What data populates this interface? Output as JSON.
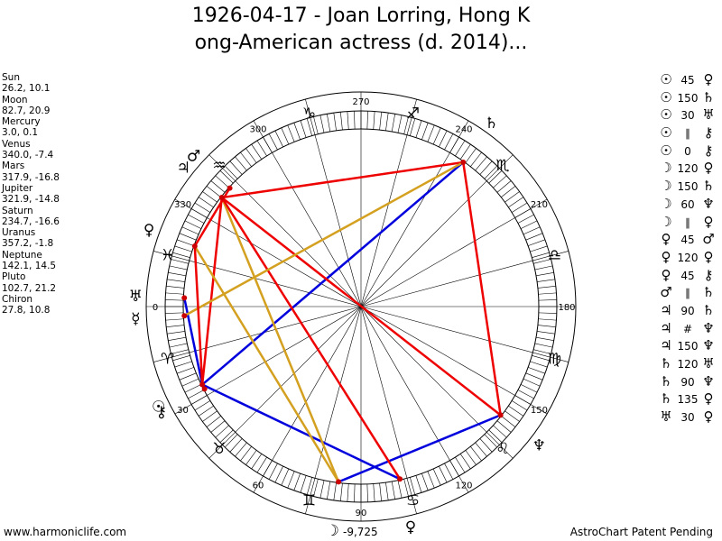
{
  "title": {
    "line1": "1926-04-17 - Joan Lorring, Hong K",
    "line2": "ong-American actress (d. 2014)..."
  },
  "planets": [
    {
      "name": "Sun",
      "coords": "26.2, 10.1",
      "symbol": "☉",
      "longitude": 26.2
    },
    {
      "name": "Moon",
      "coords": "82.7, 20.9",
      "symbol": "☽",
      "longitude": 82.7
    },
    {
      "name": "Mercury",
      "coords": "3.0, 0.1",
      "symbol": "☿",
      "longitude": 3.0
    },
    {
      "name": "Venus",
      "coords": "340.0, -7.4",
      "symbol": "♀",
      "longitude": 340.0
    },
    {
      "name": "Mars",
      "coords": "317.9, -16.8",
      "symbol": "♂",
      "longitude": 317.9
    },
    {
      "name": "Jupiter",
      "coords": "321.9, -14.8",
      "symbol": "♃",
      "longitude": 321.9
    },
    {
      "name": "Saturn",
      "coords": "234.7, -16.6",
      "symbol": "♄",
      "longitude": 234.7
    },
    {
      "name": "Uranus",
      "coords": "357.2, -1.8",
      "symbol": "♅",
      "longitude": 357.2
    },
    {
      "name": "Neptune",
      "coords": "142.1, 14.5",
      "symbol": "♆",
      "longitude": 142.1
    },
    {
      "name": "Pluto",
      "coords": "102.7, 21.2",
      "symbol": "♀",
      "longitude": 102.7
    },
    {
      "name": "Chiron",
      "coords": "27.8, 10.8",
      "symbol": "⚷",
      "longitude": 27.8
    }
  ],
  "aspects": [
    {
      "p1": "☉",
      "type": "45",
      "p2": "♀"
    },
    {
      "p1": "☉",
      "type": "150",
      "p2": "♄"
    },
    {
      "p1": "☉",
      "type": "30",
      "p2": "♅"
    },
    {
      "p1": "☉",
      "type": "∥",
      "p2": "⚷"
    },
    {
      "p1": "☉",
      "type": "0",
      "p2": "⚷"
    },
    {
      "p1": "☽",
      "type": "120",
      "p2": "♀"
    },
    {
      "p1": "☽",
      "type": "150",
      "p2": "♄"
    },
    {
      "p1": "☽",
      "type": "60",
      "p2": "♆"
    },
    {
      "p1": "☽",
      "type": "∥",
      "p2": "♀"
    },
    {
      "p1": "♀",
      "type": "45",
      "p2": "♂"
    },
    {
      "p1": "♀",
      "type": "120",
      "p2": "♀"
    },
    {
      "p1": "♀",
      "type": "45",
      "p2": "⚷"
    },
    {
      "p1": "♂",
      "type": "∥",
      "p2": "♄"
    },
    {
      "p1": "♃",
      "type": "90",
      "p2": "♄"
    },
    {
      "p1": "♃",
      "type": "#",
      "p2": "♆"
    },
    {
      "p1": "♃",
      "type": "150",
      "p2": "♆"
    },
    {
      "p1": "♄",
      "type": "120",
      "p2": "♅"
    },
    {
      "p1": "♄",
      "type": "90",
      "p2": "♆"
    },
    {
      "p1": "♄",
      "type": "135",
      "p2": "♀"
    },
    {
      "p1": "♅",
      "type": "30",
      "p2": "♀"
    }
  ],
  "zodiac_signs": [
    {
      "symbol": "♈",
      "cusp": 0
    },
    {
      "symbol": "♉",
      "cusp": 30
    },
    {
      "symbol": "♊",
      "cusp": 60
    },
    {
      "symbol": "♋",
      "cusp": 90
    },
    {
      "symbol": "♌",
      "cusp": 120
    },
    {
      "symbol": "♍",
      "cusp": 150
    },
    {
      "symbol": "♎",
      "cusp": 180
    },
    {
      "symbol": "♏",
      "cusp": 210
    },
    {
      "symbol": "♐",
      "cusp": 240
    },
    {
      "symbol": "♑",
      "cusp": 270
    },
    {
      "symbol": "♒",
      "cusp": 300
    },
    {
      "symbol": "♓",
      "cusp": 330
    }
  ],
  "degree_labels": [
    "0",
    "30",
    "60",
    "90",
    "120",
    "150",
    "180",
    "210",
    "240",
    "270",
    "300",
    "330"
  ],
  "aspect_lines": [
    {
      "a": "Sun",
      "b": "Pluto",
      "color": "#0000dd"
    },
    {
      "a": "Sun",
      "b": "Saturn",
      "color": "#0000dd"
    },
    {
      "a": "Sun",
      "b": "Jupiter",
      "color": "#ee0000"
    },
    {
      "a": "Sun",
      "b": "Uranus",
      "color": "#0000dd"
    },
    {
      "a": "Moon",
      "b": "Neptune",
      "color": "#0000dd"
    },
    {
      "a": "Moon",
      "b": "Jupiter",
      "color": "#d4a020"
    },
    {
      "a": "Moon",
      "b": "Venus",
      "color": "#d4a020"
    },
    {
      "a": "Pluto",
      "b": "Jupiter",
      "color": "#ee0000"
    },
    {
      "a": "Neptune",
      "b": "Jupiter",
      "color": "#ee0000"
    },
    {
      "a": "Neptune",
      "b": "Saturn",
      "color": "#ee0000"
    },
    {
      "a": "Saturn",
      "b": "Jupiter",
      "color": "#ee0000"
    },
    {
      "a": "Saturn",
      "b": "Mercury",
      "color": "#d4a020"
    },
    {
      "a": "Mars",
      "b": "Venus",
      "color": "#ee0000"
    },
    {
      "a": "Sun",
      "b": "Venus",
      "color": "#ee0000"
    }
  ],
  "center_value": "-9,725",
  "footer": {
    "left": "www.harmoniclife.com",
    "right": "AstroChart Patent Pending"
  },
  "colors": {
    "hard": "#ee0000",
    "soft": "#0000dd",
    "minor": "#d4a020"
  }
}
